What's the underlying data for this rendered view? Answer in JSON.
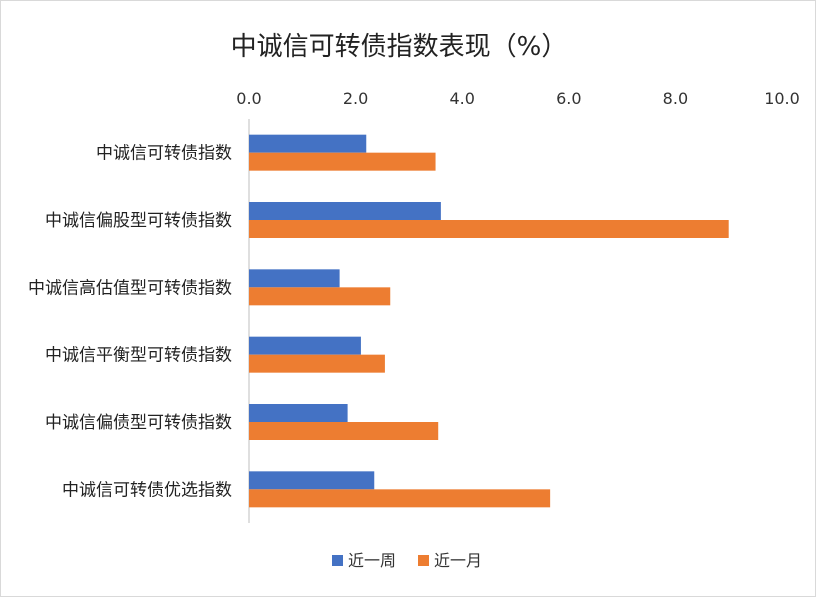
{
  "chart_data": {
    "type": "bar",
    "orientation": "horizontal",
    "title": "中诚信可转债指数表现（%）",
    "categories": [
      "中诚信可转债指数",
      "中诚信偏股型可转债指数",
      "中诚信高估值型可转债指数",
      "中诚信平衡型可转债指数",
      "中诚信偏债型可转债指数",
      "中诚信可转债优选指数"
    ],
    "series": [
      {
        "name": "近一周",
        "color": "#4472c4",
        "values": [
          2.2,
          3.6,
          1.7,
          2.1,
          1.85,
          2.35
        ]
      },
      {
        "name": "近一月",
        "color": "#ed7d31",
        "values": [
          3.5,
          9.0,
          2.65,
          2.55,
          3.55,
          5.65
        ]
      }
    ],
    "xlim": [
      0,
      10
    ],
    "xticks": [
      "0.0",
      "2.0",
      "4.0",
      "6.0",
      "8.0",
      "10.0"
    ],
    "x_axis_position": "top",
    "grid": false,
    "legend_position": "bottom"
  }
}
